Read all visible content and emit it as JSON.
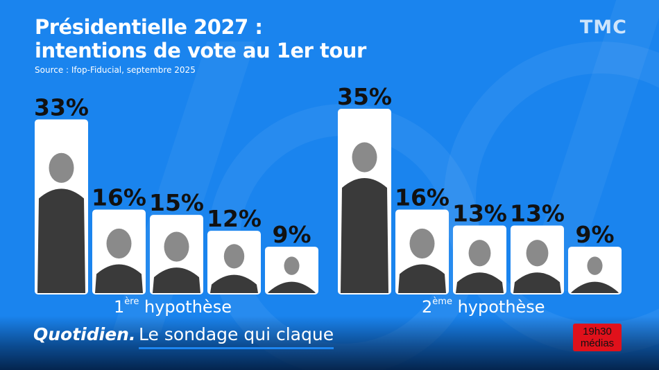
{
  "header": {
    "title_line1": "Présidentielle 2027 :",
    "title_line2": "intentions de vote au 1er tour",
    "source": "Source : Ifop-Fiducial, septembre 2025",
    "channel_logo": "TMC"
  },
  "colors": {
    "background": "#1a84ee",
    "card": "#ffffff",
    "text": "#ffffff",
    "value_text": "#111111",
    "badge": "#e0111b"
  },
  "chart_data": [
    {
      "type": "bar",
      "title": "1ère hypothèse",
      "title_prefix": "1",
      "title_sup": "ère",
      "title_suffix": " hypothèse",
      "categories": [
        "",
        "",
        "",
        "",
        ""
      ],
      "values": [
        33,
        16,
        15,
        12,
        9
      ],
      "value_labels": [
        "33%",
        "16%",
        "15%",
        "12%",
        "9%"
      ],
      "ylim": [
        0,
        35
      ]
    },
    {
      "type": "bar",
      "title": "2ème hypothèse",
      "title_prefix": "2",
      "title_sup": "ème",
      "title_suffix": " hypothèse",
      "categories": [
        "",
        "",
        "",
        "",
        ""
      ],
      "values": [
        35,
        16,
        13,
        13,
        9
      ],
      "value_labels": [
        "35%",
        "16%",
        "13%",
        "13%",
        "9%"
      ],
      "ylim": [
        0,
        35
      ]
    }
  ],
  "footer": {
    "show_name": "Quotidien.",
    "segment_title": "Le sondage qui claque",
    "badge_line1": "19h30",
    "badge_line2": "médias"
  }
}
